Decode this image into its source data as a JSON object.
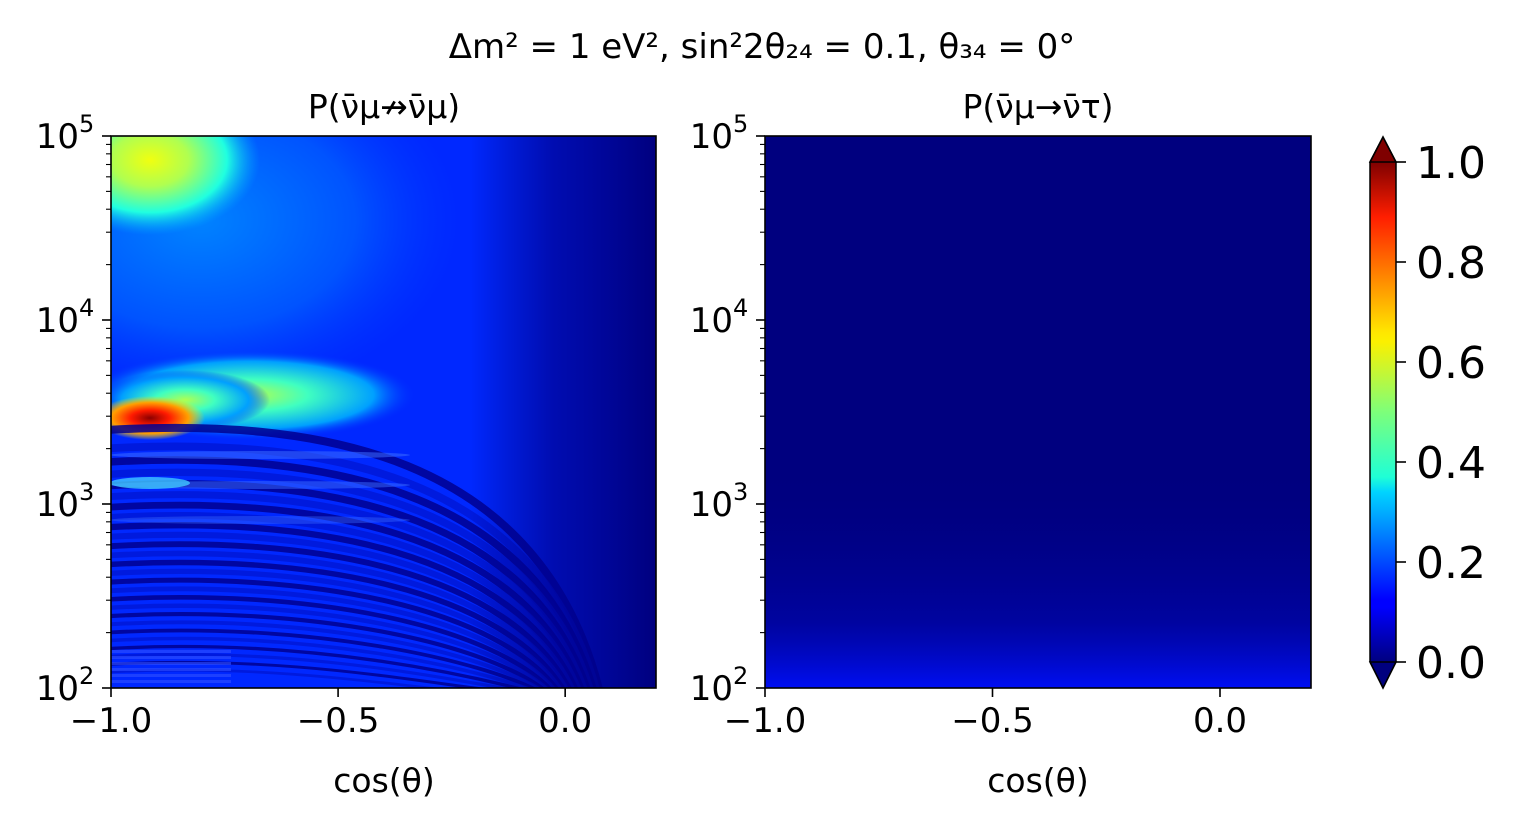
{
  "figure": {
    "suptitle": "Δm² = 1 eV², sin²2θ₂₄ = 0.1, θ₃₄ = 0°"
  },
  "chart_data": [
    {
      "type": "heatmap",
      "title": "P(ν̄μ↛ν̄μ)",
      "xlabel": "cos(θ)",
      "ylabel": "",
      "xlim": [
        -1.0,
        0.2
      ],
      "ylim": [
        100,
        100000
      ],
      "yscale": "log",
      "x_ticks": [
        "−1.0",
        "−0.5",
        "0.0"
      ],
      "x_tick_values": [
        -1.0,
        -0.5,
        0.0
      ],
      "y_ticks": [
        "10",
        "10",
        "10",
        "10"
      ],
      "y_tick_exponents": [
        "2",
        "3",
        "4",
        "5"
      ],
      "y_tick_values": [
        100,
        1000,
        10000,
        100000
      ],
      "colormap": "jet",
      "features": [
        {
          "x": -0.95,
          "y": 2700,
          "value": 0.95
        },
        {
          "x": -0.85,
          "y": 4000,
          "value": 0.65
        },
        {
          "x": -0.7,
          "y": 4600,
          "value": 0.45
        },
        {
          "x": -0.95,
          "y": 90000,
          "value": 0.6
        },
        {
          "x": -0.9,
          "y": 30000,
          "value": 0.35
        },
        {
          "x": -0.5,
          "y": 20000,
          "value": 0.15
        },
        {
          "x": 0.1,
          "y": 20000,
          "value": 0.02
        },
        {
          "x": -0.9,
          "y": 1300,
          "value": 0.35
        },
        {
          "x": -0.6,
          "y": 1000,
          "value": 0.1
        },
        {
          "x": -0.9,
          "y": 110,
          "value": 0.2
        }
      ]
    },
    {
      "type": "heatmap",
      "title": "P(ν̄μ→ν̄τ)",
      "xlabel": "cos(θ)",
      "ylabel": "",
      "xlim": [
        -1.0,
        0.2
      ],
      "ylim": [
        100,
        100000
      ],
      "yscale": "log",
      "x_ticks": [
        "−1.0",
        "−0.5",
        "0.0"
      ],
      "x_tick_values": [
        -1.0,
        -0.5,
        0.0
      ],
      "y_ticks": [
        "10",
        "10",
        "10",
        "10"
      ],
      "y_tick_exponents": [
        "2",
        "3",
        "4",
        "5"
      ],
      "y_tick_values": [
        100,
        1000,
        10000,
        100000
      ],
      "colormap": "jet",
      "features": [
        {
          "x": -0.5,
          "y": 10000,
          "value": 0.0
        },
        {
          "x": -0.95,
          "y": 110,
          "value": 0.1
        },
        {
          "x": -0.5,
          "y": 120,
          "value": 0.05
        }
      ]
    }
  ],
  "colorbar": {
    "ticks": [
      "0.0",
      "0.2",
      "0.4",
      "0.6",
      "0.8",
      "1.0"
    ],
    "tick_values": [
      0.0,
      0.2,
      0.4,
      0.6,
      0.8,
      1.0
    ],
    "range": [
      0.0,
      1.0
    ],
    "extend": "both",
    "colormap": "jet",
    "under_color": "#00007f",
    "over_color": "#7f0000"
  }
}
